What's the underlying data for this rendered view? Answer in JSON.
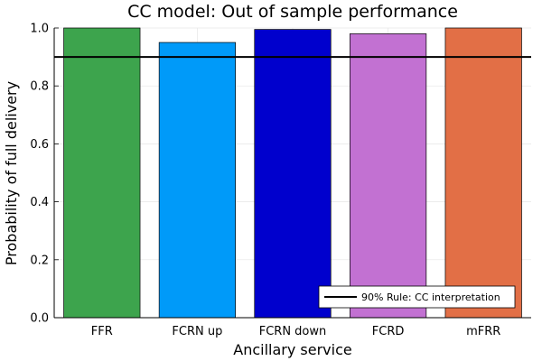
{
  "chart_data": {
    "type": "bar",
    "title": "CC model: Out of sample performance",
    "xlabel": "Ancillary service",
    "ylabel": "Probability of full delivery",
    "categories": [
      "FFR",
      "FCRN up",
      "FCRN down",
      "FCRD",
      "mFRR"
    ],
    "values": [
      1.0,
      0.95,
      0.995,
      0.98,
      1.0
    ],
    "colors": [
      "#3da44d",
      "#009af9",
      "#0000cd",
      "#c271d2",
      "#e26f46"
    ],
    "ylim": [
      0,
      1
    ],
    "yticks": [
      "0.0",
      "0.2",
      "0.4",
      "0.6",
      "0.8",
      "1.0"
    ],
    "grid": true,
    "reference_line": {
      "value": 0.9,
      "color": "#000000",
      "label": "90% Rule: CC interpretation"
    },
    "legend_position": "bottom-right"
  }
}
